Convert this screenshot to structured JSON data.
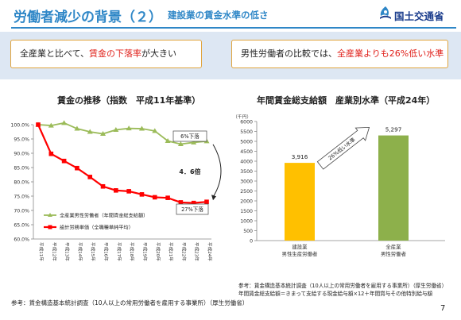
{
  "header": {
    "title": "労働者減少の背景（２）",
    "subtitle": "建設業の賃金水準の低さ",
    "logo_text": "国土交通省"
  },
  "points": {
    "left_pre": "全産業と比べて、",
    "left_hl": "賃金の下落率",
    "left_post": "が大きい",
    "right_pre": "男性労働者の比較では、",
    "right_hl": "全産業よりも26%低い水準"
  },
  "colors": {
    "title_blue": "#2f87c7",
    "band": "#dde7f3",
    "box_border": "#e0a43d",
    "highlight_red": "#e0201a",
    "series_green": "#9bbb59",
    "series_red": "#ff0000",
    "bar_orange": "#ffc000",
    "bar_green": "#8db04b"
  },
  "chart_data": [
    {
      "type": "line",
      "title": "賃金の推移（指数　平成11年基準）",
      "categories": [
        "平成11年",
        "平成12年",
        "平成13年",
        "平成14年",
        "平成15年",
        "平成16年",
        "平成17年",
        "平成18年",
        "平成19年",
        "平成20年",
        "平成21年",
        "平成22年",
        "平成23年",
        "平成24年"
      ],
      "ylim": [
        60,
        100
      ],
      "yticks": [
        60,
        65,
        70,
        75,
        80,
        85,
        90,
        95,
        100
      ],
      "ytick_labels": [
        "60.0%",
        "65.0%",
        "70.0%",
        "75.0%",
        "80.0%",
        "85.0%",
        "90.0%",
        "95.0%",
        "100.0%"
      ],
      "grid": false,
      "legend_position": "bottom-left",
      "series": [
        {
          "name": "全産業男性労働者（年間賃金総支給額）",
          "color": "#9bbb59",
          "marker": "triangle",
          "values": [
            100,
            99.7,
            100.6,
            98.6,
            97.5,
            96.8,
            98.2,
            98.7,
            98.6,
            97.8,
            94.3,
            93.2,
            93.8,
            94.2
          ]
        },
        {
          "name": "設計労務単価（全職種単純平均）",
          "color": "#ff0000",
          "marker": "square",
          "values": [
            100,
            89.8,
            87.3,
            84.8,
            81.7,
            78.4,
            77.0,
            76.7,
            75.6,
            74.6,
            74.4,
            72.8,
            72.6,
            73.0
          ]
        }
      ],
      "annotations": {
        "green_drop": "6%下落",
        "ratio": "4．6倍",
        "red_drop": "27%下落"
      }
    },
    {
      "type": "bar",
      "title": "年間賃金総支給額　産業別水準（平成24年）",
      "unit": "（千円）",
      "ylim": [
        0,
        6000
      ],
      "yticks": [
        0,
        500,
        1000,
        1500,
        2000,
        2500,
        3000,
        3500,
        4000,
        4500,
        5000,
        5500,
        6000
      ],
      "categories": [
        {
          "line1": "建設業",
          "line2": "男性生産労働者"
        },
        {
          "line1": "全産業",
          "line2": "男性労働者"
        }
      ],
      "values": [
        3916,
        5297
      ],
      "value_labels": [
        "3,916",
        "5,297"
      ],
      "colors": [
        "#ffc000",
        "#8db04b"
      ],
      "annotation": "26%低い水準"
    }
  ],
  "sources": {
    "left": "参考：賃金構造基本統計調査（10人以上の常用労働者を雇用する事業所）（厚生労働省）",
    "right_line1": "参考：賃金構造基本統計調査（10人以上の常用労働者を雇用する事業所）（厚生労働省）",
    "right_line2": "年間賃金総支給額＝きまって支給する現金給与額×12＋年間賞与その他特別給与額"
  },
  "page_number": "7"
}
